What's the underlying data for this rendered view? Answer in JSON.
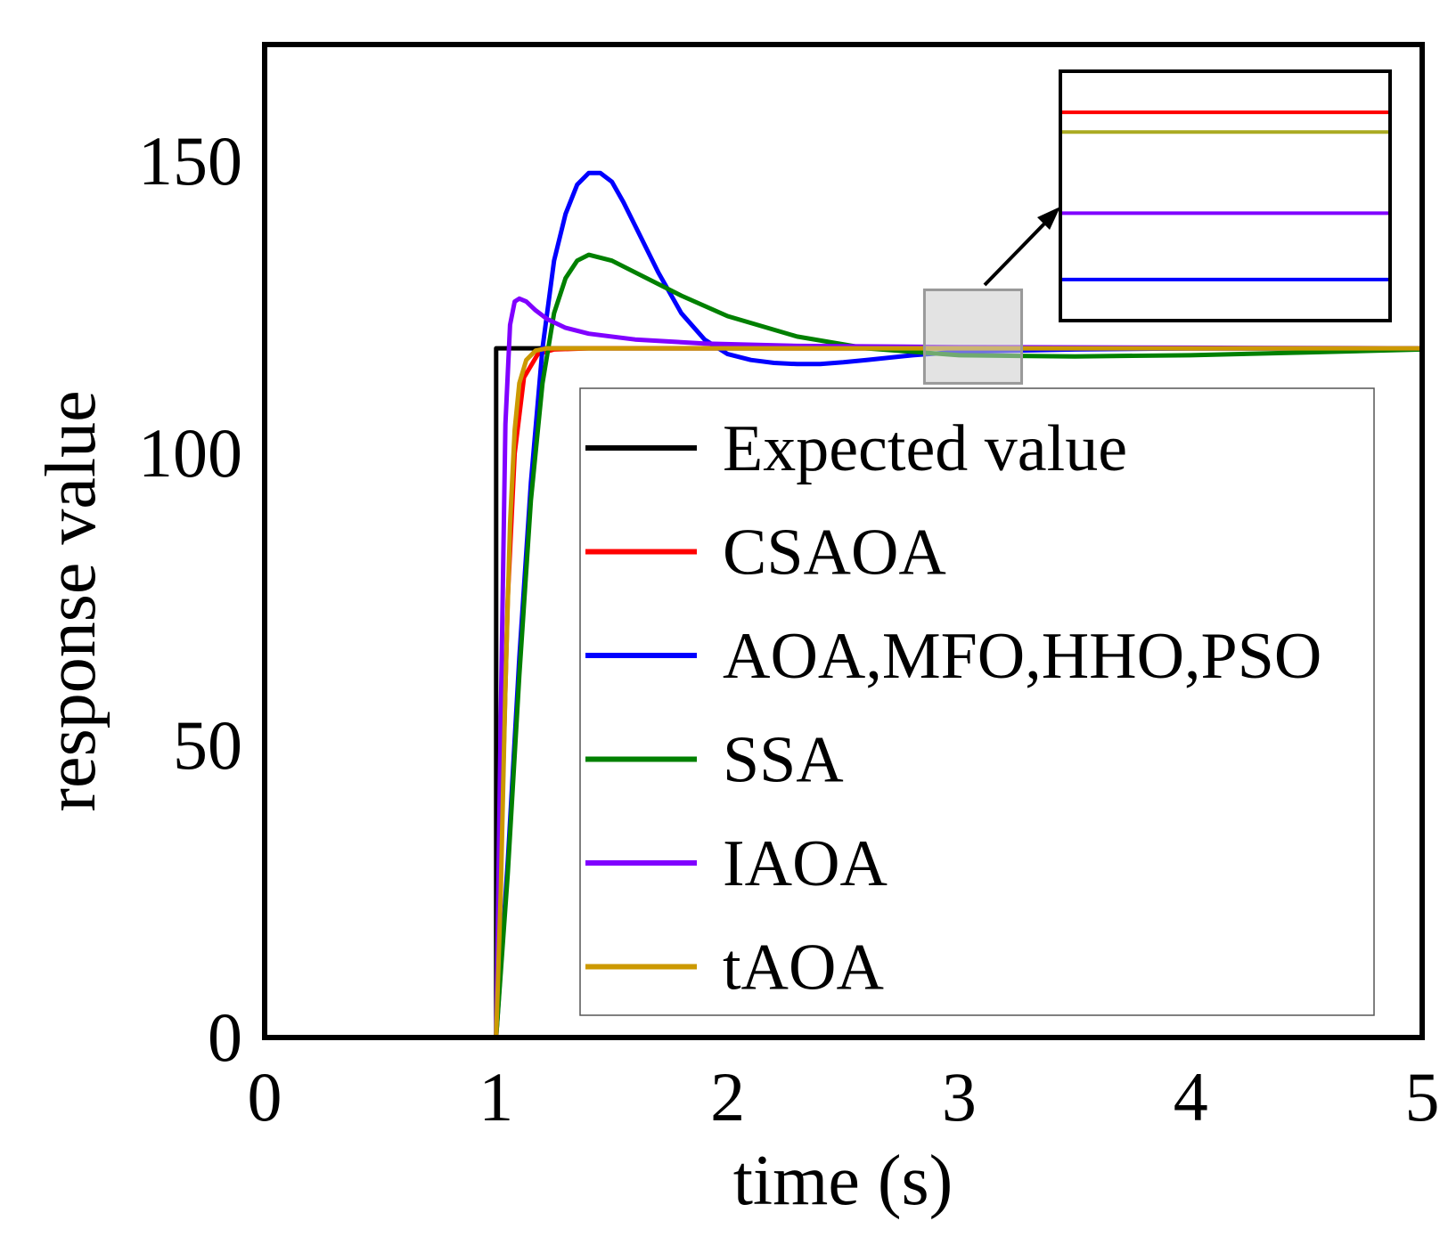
{
  "chart_data": {
    "type": "line",
    "title": "",
    "xlabel": "time (s)",
    "ylabel": "response value",
    "xlim": [
      0,
      5
    ],
    "ylim": [
      0,
      170
    ],
    "xticks": [
      "0",
      "1",
      "2",
      "3",
      "4",
      "5"
    ],
    "yticks": [
      "0",
      "50",
      "100",
      "150"
    ],
    "ytick_values": [
      0,
      50,
      100,
      150
    ],
    "grid": false,
    "legend_position": "lower-right",
    "series": [
      {
        "name": "Expected value",
        "color": "#000000",
        "x": [
          0,
          1,
          1,
          5
        ],
        "y": [
          0,
          0,
          118,
          118
        ]
      },
      {
        "name": "CSAOA",
        "color": "#ff0000",
        "x": [
          0,
          1,
          1.02,
          1.05,
          1.08,
          1.12,
          1.18,
          1.25,
          1.4,
          2,
          3,
          4,
          5
        ],
        "y": [
          0,
          0,
          30,
          75,
          100,
          113,
          117,
          117.8,
          118,
          118,
          118,
          118,
          118
        ]
      },
      {
        "name": "AOA,MFO,HHO,PSO",
        "color": "#0000ff",
        "x": [
          0,
          1,
          1.05,
          1.1,
          1.15,
          1.2,
          1.25,
          1.3,
          1.35,
          1.4,
          1.45,
          1.5,
          1.55,
          1.6,
          1.7,
          1.8,
          1.9,
          2.0,
          2.1,
          2.2,
          2.3,
          2.4,
          2.5,
          2.6,
          2.8,
          3.0,
          3.5,
          4.0,
          4.5,
          5.0
        ],
        "y": [
          0,
          0,
          30,
          65,
          95,
          118,
          133,
          141,
          146,
          148,
          148,
          146.5,
          143,
          139,
          131,
          124,
          119.5,
          117,
          116,
          115.5,
          115.3,
          115.3,
          115.6,
          116,
          116.8,
          117.4,
          117.8,
          118,
          118,
          118
        ]
      },
      {
        "name": "SSA",
        "color": "#008000",
        "x": [
          0,
          1,
          1.05,
          1.1,
          1.15,
          1.2,
          1.25,
          1.3,
          1.35,
          1.4,
          1.5,
          1.6,
          1.8,
          2.0,
          2.3,
          2.6,
          3.0,
          3.5,
          4.0,
          4.5,
          5.0
        ],
        "y": [
          0,
          0,
          28,
          62,
          92,
          112,
          124,
          130,
          133,
          134,
          133,
          131,
          127,
          123.5,
          120,
          118,
          116.8,
          116.6,
          116.8,
          117.3,
          117.8
        ]
      },
      {
        "name": "IAOA",
        "color": "#8000ff",
        "x": [
          0,
          1,
          1.02,
          1.04,
          1.06,
          1.08,
          1.1,
          1.13,
          1.17,
          1.22,
          1.3,
          1.4,
          1.6,
          1.9,
          2.3,
          3.0,
          4.0,
          5.0
        ],
        "y": [
          0,
          0,
          55,
          105,
          122,
          126,
          126.5,
          126,
          124.5,
          123,
          121.5,
          120.5,
          119.5,
          118.8,
          118.4,
          118.2,
          118.1,
          118
        ]
      },
      {
        "name": "tAOA",
        "color": "#cc9900",
        "x": [
          0,
          1,
          1.02,
          1.04,
          1.06,
          1.08,
          1.1,
          1.13,
          1.17,
          1.22,
          1.3,
          1.5,
          2,
          3,
          4,
          5
        ],
        "y": [
          0,
          0,
          25,
          60,
          88,
          104,
          112,
          116,
          117.6,
          118,
          118,
          118,
          118,
          118,
          118,
          118
        ]
      }
    ],
    "inset": {
      "zoom_box_x": [
        2.85,
        3.27
      ],
      "zoom_box_y": [
        112,
        128
      ],
      "lines": [
        {
          "name": "CSAOA",
          "color": "#ff0000",
          "level": 0.84
        },
        {
          "name": "tAOA",
          "color": "#aaaa22",
          "level": 0.76
        },
        {
          "name": "IAOA",
          "color": "#8000ff",
          "level": 0.43
        },
        {
          "name": "AOA,MFO,HHO,PSO",
          "color": "#0000ff",
          "level": 0.16
        }
      ]
    }
  }
}
